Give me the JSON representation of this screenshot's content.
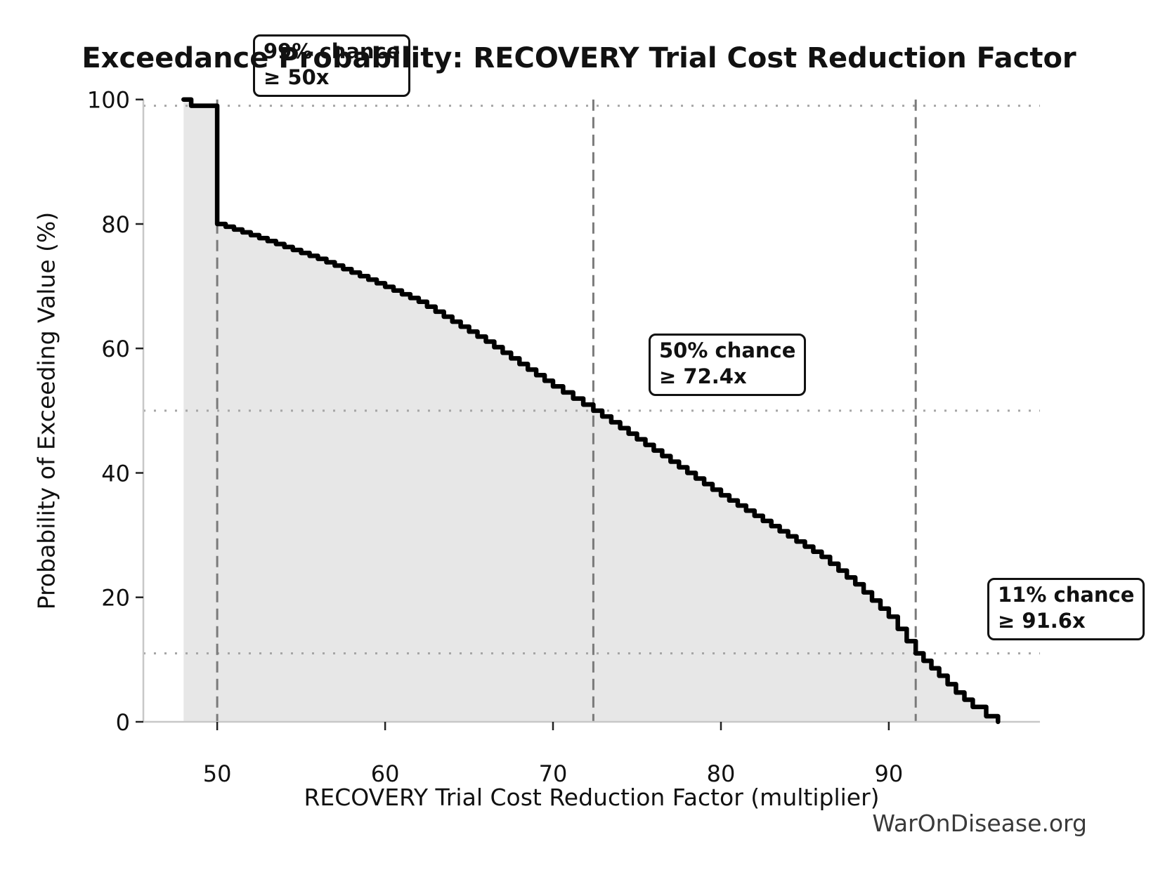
{
  "chart_data": {
    "type": "area",
    "title": "Exceedance Probability: RECOVERY Trial Cost Reduction Factor",
    "xlabel": "RECOVERY Trial Cost Reduction Factor (multiplier)",
    "ylabel": "Probability of Exceeding Value (%)",
    "xlim": [
      45.6,
      99.0
    ],
    "ylim": [
      0,
      100
    ],
    "x_ticks": [
      50,
      60,
      70,
      80,
      90
    ],
    "y_ticks": [
      0,
      20,
      40,
      60,
      80,
      100
    ],
    "grid": "reference-lines-only",
    "legend": "none",
    "points": [
      [
        48,
        100
      ],
      [
        48.3,
        100
      ],
      [
        48.45,
        99
      ],
      [
        50,
        99
      ],
      [
        50,
        80
      ],
      [
        52,
        78.2
      ],
      [
        54,
        76.3
      ],
      [
        56,
        74.4
      ],
      [
        58,
        72.2
      ],
      [
        60,
        69.9
      ],
      [
        62,
        67.5
      ],
      [
        64,
        64.3
      ],
      [
        66,
        61.1
      ],
      [
        68,
        57.5
      ],
      [
        70,
        53.9
      ],
      [
        72.4,
        50
      ],
      [
        74,
        47.2
      ],
      [
        76,
        43.6
      ],
      [
        78,
        40
      ],
      [
        80,
        36.4
      ],
      [
        82,
        33.1
      ],
      [
        84,
        29.8
      ],
      [
        86,
        26.5
      ],
      [
        88,
        22.1
      ],
      [
        90,
        16.9
      ],
      [
        91.6,
        11
      ],
      [
        93,
        7.4
      ],
      [
        94,
        4.7
      ],
      [
        95,
        2.4
      ],
      [
        95.8,
        0.9
      ],
      [
        96.5,
        0
      ]
    ],
    "reference_lines": {
      "vertical": [
        50,
        72.4,
        91.6
      ],
      "horizontal": [
        99,
        50,
        11
      ]
    },
    "colors": {
      "curve": "#000000",
      "fill": "#e7e7e7",
      "dashed": "#7a7a7a",
      "dotted": "#a6a6a6",
      "spine": "#c8c8c8",
      "tick": "#222222",
      "text": "#111111",
      "watermark": "#3a3a3a"
    }
  },
  "annotations": [
    {
      "line1": "99% chance",
      "line2": "≥ 50x",
      "probability_pct": 99,
      "threshold": "50x"
    },
    {
      "line1": "50% chance",
      "line2": "≥ 72.4x",
      "probability_pct": 50,
      "threshold": "72.4x"
    },
    {
      "line1": "11% chance",
      "line2": "≥ 91.6x",
      "probability_pct": 11,
      "threshold": "91.6x"
    }
  ],
  "watermark": "WarOnDisease.org"
}
